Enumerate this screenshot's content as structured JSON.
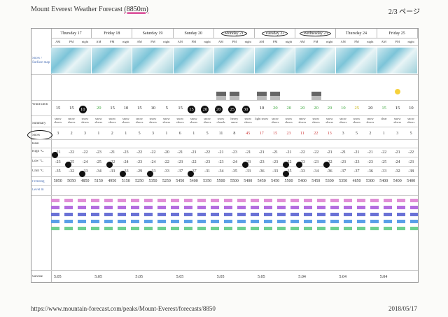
{
  "header": {
    "title": "Mount Everest Weather Forecast",
    "elevation": "(8850m)",
    "page": "2/3 ページ"
  },
  "days": [
    {
      "label": "Thursday 17"
    },
    {
      "label": "Friday 18"
    },
    {
      "label": "Saturday 19"
    },
    {
      "label": "Sunday 20"
    },
    {
      "label": "Monday 21"
    },
    {
      "label": "Tuesday 22"
    },
    {
      "label": "Wednesday 23"
    },
    {
      "label": "Thursday 24"
    },
    {
      "label": "Friday 25"
    }
  ],
  "periods": [
    "AM",
    "PM",
    "night"
  ],
  "row_labels": {
    "map": "Snow / Surface map",
    "wind": "Wind km/h",
    "summary": "Summary",
    "snow": "Snow",
    "rain": "Rain",
    "high": "High °C",
    "low": "Low °C",
    "chill": "Chill °C",
    "freezing": "Freezing",
    "level": "Level m",
    "sunrise": "Sunrise"
  },
  "wind": [
    "15",
    "15",
    "10",
    "20",
    "15",
    "10",
    "15",
    "10",
    "5",
    "15",
    "15",
    "20",
    "20",
    "25",
    "30",
    "10",
    "20",
    "20",
    "20",
    "20",
    "20",
    "10",
    "25",
    "20",
    "15",
    "15",
    "10"
  ],
  "summary": [
    "snow shwrs",
    "snow shwrs",
    "snow shwrs",
    "snow shwrs",
    "snow shwrs",
    "snow shwrs",
    "snow shwrs",
    "snow shwrs",
    "snow shwrs",
    "snow shwrs",
    "snow shwrs",
    "snow shwrs",
    "snow clouds",
    "heavy snow",
    "snow shwrs",
    "light snow",
    "snow shwrs",
    "snow shwrs",
    "snow shwrs",
    "snow shwrs",
    "snow shwrs",
    "snow shwrs",
    "snow shwrs",
    "snow shwrs",
    "clear",
    "snow shwrs",
    "snow shwrs"
  ],
  "snow": [
    "3",
    "2",
    "3",
    "1",
    "2",
    "1",
    "5",
    "3",
    "1",
    "6",
    "1",
    "5",
    "11",
    "8",
    "45",
    "17",
    "15",
    "23",
    "11",
    "22",
    "13",
    "3",
    "5",
    "2",
    "1",
    "3",
    "5"
  ],
  "high": [
    "-21",
    "-22",
    "-22",
    "-23",
    "-21",
    "-23",
    "-22",
    "-22",
    "-20",
    "-21",
    "-21",
    "-22",
    "-21",
    "-23",
    "-21",
    "-21",
    "-21",
    "-21",
    "-22",
    "-22",
    "-21",
    "-21",
    "-21",
    "-21",
    "-22",
    "-21",
    "-22"
  ],
  "low": [
    "-23",
    "-25",
    "-24",
    "-25",
    "-22",
    "-24",
    "-23",
    "-24",
    "-22",
    "-23",
    "-22",
    "-23",
    "-23",
    "-24",
    "-23",
    "-23",
    "-23",
    "-22",
    "-23",
    "-23",
    "-22",
    "-23",
    "-23",
    "-23",
    "-25",
    "-24",
    "-23"
  ],
  "chill": [
    "-35",
    "-32",
    "-33",
    "-34",
    "-33",
    "-33",
    "-29",
    "-33",
    "-33",
    "-37",
    "-37",
    "-31",
    "-34",
    "-35",
    "-33",
    "-36",
    "-33",
    "-35",
    "-33",
    "-34",
    "-36",
    "-37",
    "-37",
    "-36",
    "-33",
    "-32",
    "-38"
  ],
  "freezing": [
    "5050",
    "5050",
    "4850",
    "5150",
    "4950",
    "5150",
    "5250",
    "5350",
    "5250",
    "5450",
    "5400",
    "5350",
    "5500",
    "5500",
    "5400",
    "5450",
    "5450",
    "5500",
    "5400",
    "5450",
    "5300",
    "5350",
    "4850",
    "5300",
    "5400",
    "5400",
    "5400"
  ],
  "sunrise": [
    "5:05",
    "5:05",
    "5:05",
    "5:05",
    "5:05",
    "5:05",
    "5:04",
    "5:04",
    "5:04"
  ],
  "footer": {
    "url": "https://www.mountain-forecast.com/peaks/Mount-Everest/forecasts/8850",
    "date": "2018/05/17"
  }
}
